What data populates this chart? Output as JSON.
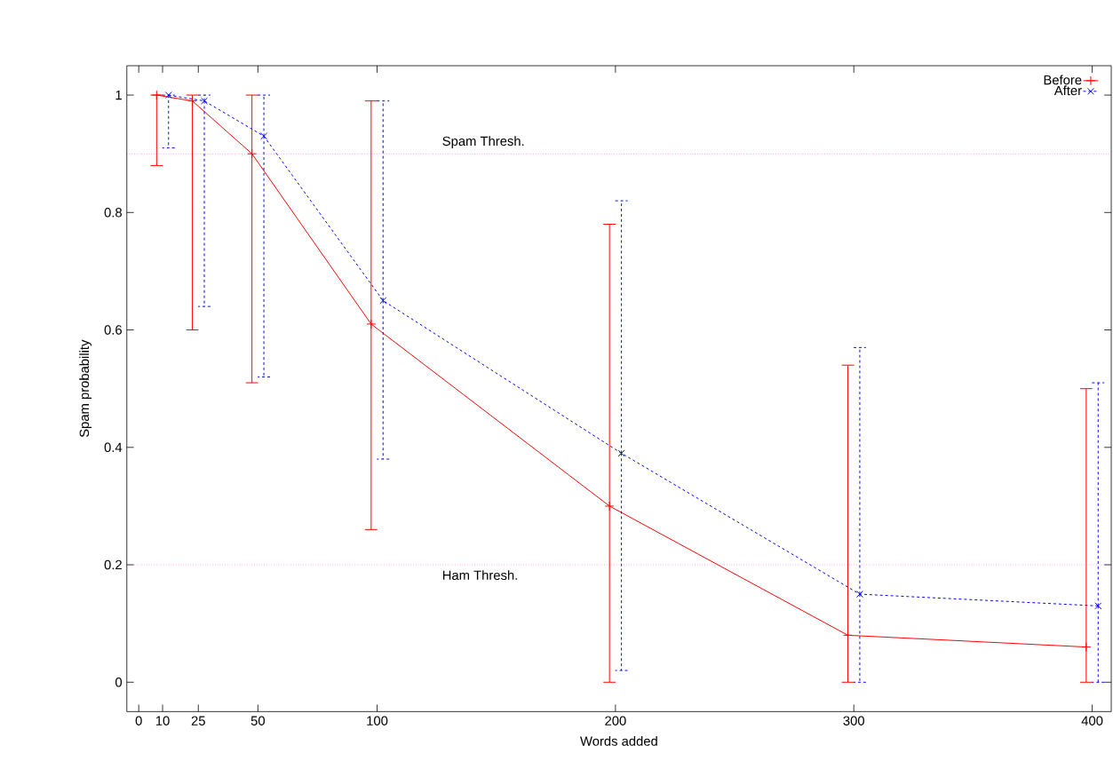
{
  "chart_data": {
    "type": "line",
    "xlabel": "Words added",
    "ylabel": "Spam probability",
    "xlim": [
      -5,
      408
    ],
    "ylim": [
      -0.05,
      1.05
    ],
    "xticks": [
      0,
      10,
      25,
      50,
      100,
      200,
      300,
      400
    ],
    "yticks": [
      0,
      0.2,
      0.4,
      0.6,
      0.8,
      1
    ],
    "legend": "top right",
    "grid": false,
    "ref_lines": [
      {
        "axis": "y",
        "value": 0.9,
        "label": "Spam Thresh.",
        "color": "#ff00ff",
        "line_style": "dotted"
      },
      {
        "axis": "y",
        "value": 0.2,
        "label": "Ham Thresh.",
        "color": "#ff00ff",
        "line_style": "dotted"
      }
    ],
    "series": [
      {
        "name": "Before",
        "color": "#ff0000",
        "marker": "plus",
        "line_style": "solid",
        "x": [
          7.5,
          22.5,
          47.5,
          97.5,
          197.5,
          297.5,
          397.5
        ],
        "values": [
          1.0,
          0.99,
          0.9,
          0.61,
          0.3,
          0.08,
          0.06
        ],
        "errors": [
          [
            0.88,
            1.0
          ],
          [
            0.6,
            1.0
          ],
          [
            0.51,
            1.0
          ],
          [
            0.26,
            0.99
          ],
          [
            0,
            0.78
          ],
          [
            0,
            0.54
          ],
          [
            0,
            0.5
          ]
        ]
      },
      {
        "name": "After",
        "color": "#0000ff",
        "marker": "cross",
        "line_style": "dashed",
        "x": [
          12.5,
          27.5,
          52.5,
          102.5,
          202.5,
          302.5,
          402.5
        ],
        "values": [
          1.0,
          0.99,
          0.93,
          0.65,
          0.39,
          0.15,
          0.13
        ],
        "errors": [
          [
            0.91,
            1.0
          ],
          [
            0.64,
            1.0
          ],
          [
            0.52,
            1.0
          ],
          [
            0.38,
            0.99
          ],
          [
            0.02,
            0.82
          ],
          [
            0,
            0.57
          ],
          [
            0,
            0.51
          ]
        ]
      }
    ]
  }
}
